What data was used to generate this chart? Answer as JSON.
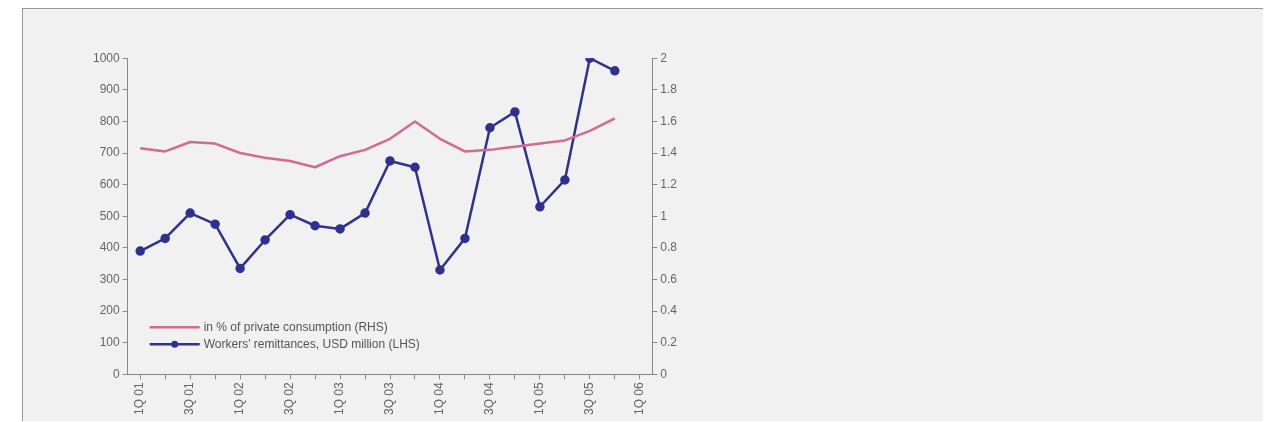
{
  "chart_data": {
    "type": "line",
    "categories": [
      "1Q 01",
      null,
      "3Q 01",
      null,
      "1Q 02",
      null,
      "3Q 02",
      null,
      "1Q 03",
      null,
      "3Q 03",
      null,
      "1Q 04",
      null,
      "3Q 04",
      null,
      "1Q 05",
      null,
      "3Q 05",
      null,
      "1Q 06"
    ],
    "series": [
      {
        "name": "in % of private consumption (RHS)",
        "color": "#d46a8c",
        "axis": "y2",
        "marker": "none",
        "values": [
          1.43,
          1.41,
          1.47,
          1.46,
          1.4,
          1.37,
          1.35,
          1.31,
          1.38,
          1.42,
          1.49,
          1.6,
          1.49,
          1.41,
          1.42,
          1.44,
          1.46,
          1.48,
          1.54,
          1.62,
          null
        ]
      },
      {
        "name": "Workers' remittances, USD million (LHS)",
        "color": "#2e3192",
        "axis": "y",
        "marker": "circle",
        "values": [
          390,
          430,
          510,
          475,
          335,
          425,
          505,
          470,
          460,
          510,
          675,
          655,
          330,
          430,
          780,
          830,
          530,
          615,
          1000,
          960,
          null
        ]
      }
    ],
    "ylim": [
      0,
      1000
    ],
    "yticks": [
      0,
      100,
      200,
      300,
      400,
      500,
      600,
      700,
      800,
      900,
      1000
    ],
    "y2lim": [
      0,
      2
    ],
    "y2ticks": [
      0,
      0.2,
      0.4,
      0.6,
      0.8,
      1,
      1.2,
      1.4,
      1.6,
      1.8,
      2
    ],
    "grid": false,
    "legend": "bottom left"
  }
}
